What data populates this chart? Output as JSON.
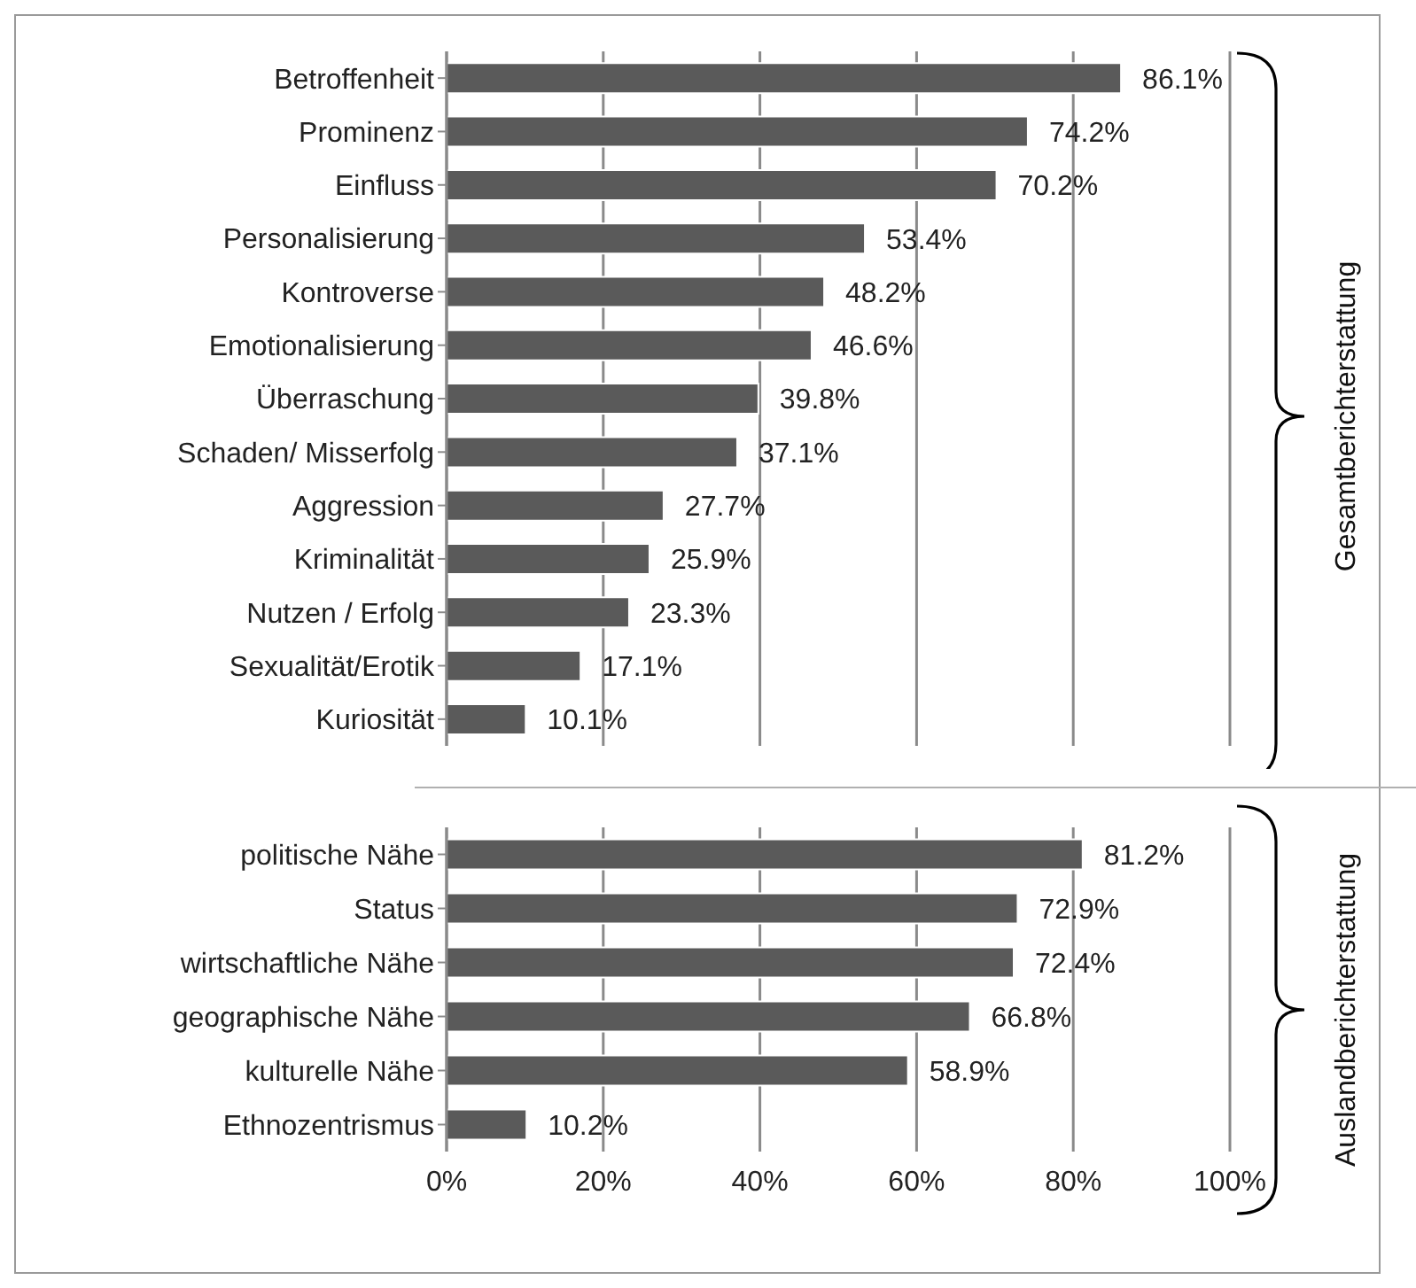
{
  "chart_data": [
    {
      "type": "bar",
      "orientation": "horizontal",
      "categories": [
        "Betroffenheit",
        "Prominenz",
        "Einfluss",
        "Personalisierung",
        "Kontroverse",
        "Emotionalisierung",
        "Überraschung",
        "Schaden/ Misserfolg",
        "Aggression",
        "Kriminalität",
        "Nutzen / Erfolg",
        "Sexualität/Erotik",
        "Kuriosität"
      ],
      "values": [
        86.1,
        74.2,
        70.2,
        53.4,
        48.2,
        46.6,
        39.8,
        37.1,
        27.7,
        25.9,
        23.3,
        17.1,
        10.1
      ],
      "value_labels": [
        "86.1%",
        "74.2%",
        "70.2%",
        "53.4%",
        "48.2%",
        "46.6%",
        "39.8%",
        "37.1%",
        "27.7%",
        "25.9%",
        "23.3%",
        "17.1%",
        "10.1%"
      ],
      "color": "#5a5a5a",
      "xlim": [
        0,
        100
      ],
      "xticks": [
        {
          "value": 0,
          "label": null
        },
        {
          "value": 20,
          "label": null
        },
        {
          "value": 40,
          "label": null
        },
        {
          "value": 60,
          "label": null
        },
        {
          "value": 80,
          "label": null
        },
        {
          "value": 100,
          "label": null
        }
      ],
      "tick_labels": "y",
      "grid": "x",
      "legend": false,
      "annotations": [
        "Gesamtberichterstattung"
      ]
    },
    {
      "type": "bar",
      "orientation": "horizontal",
      "categories": [
        "politische Nähe",
        "Status",
        "wirtschaftliche Nähe",
        "geographische Nähe",
        "kulturelle Nähe",
        "Ethnozentrismus"
      ],
      "values": [
        81.2,
        72.9,
        72.4,
        66.8,
        58.9,
        10.2
      ],
      "value_labels": [
        "81.2%",
        "72.9%",
        "72.4%",
        "66.8%",
        "58.9%",
        "10.2%"
      ],
      "color": "#5a5a5a",
      "xlim": [
        0,
        100
      ],
      "xticks": [
        {
          "value": 0,
          "label": "0%"
        },
        {
          "value": 20,
          "label": "20%"
        },
        {
          "value": 40,
          "label": "40%"
        },
        {
          "value": 60,
          "label": "60%"
        },
        {
          "value": 80,
          "label": "80%"
        },
        {
          "value": 100,
          "label": "100%"
        }
      ],
      "grid": "x",
      "legend": false,
      "annotations": [
        "Auslandberichterstattung"
      ]
    }
  ]
}
